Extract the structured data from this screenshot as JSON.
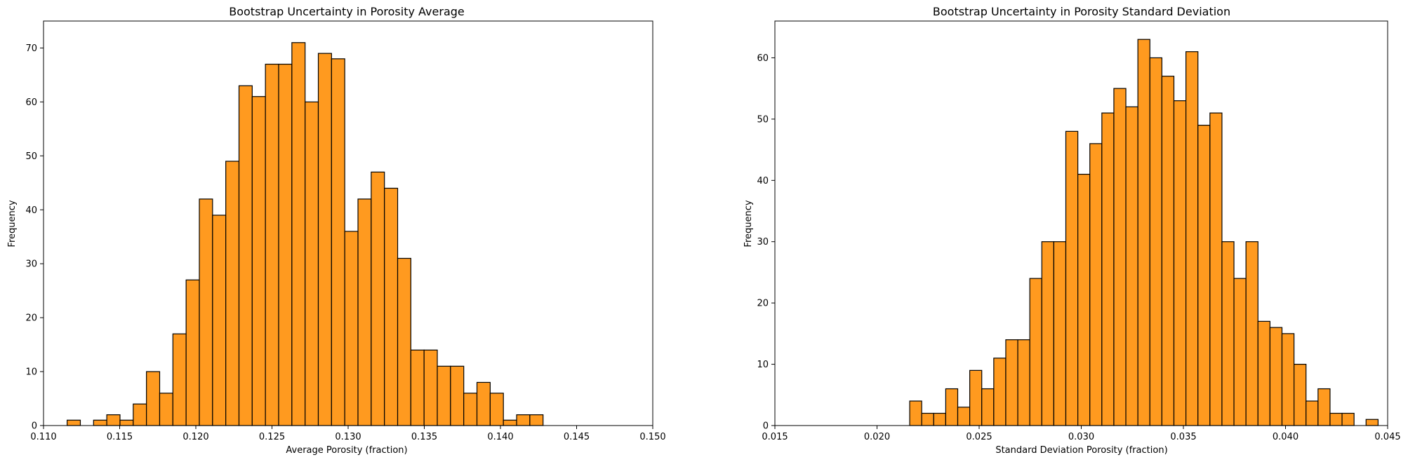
{
  "chart_data": [
    {
      "type": "bar",
      "title": "Bootstrap Uncertainty in Porosity Average",
      "xlabel": "Average Porosity (fraction)",
      "ylabel": "Frequency",
      "xlim": [
        0.11,
        0.15
      ],
      "ylim": [
        0,
        75
      ],
      "xticks": [
        "0.110",
        "0.115",
        "0.120",
        "0.125",
        "0.130",
        "0.135",
        "0.140",
        "0.145",
        "0.150"
      ],
      "yticks": [
        "0",
        "10",
        "20",
        "30",
        "40",
        "50",
        "60",
        "70"
      ],
      "bins": {
        "start": 0.11155,
        "width": 0.000868
      },
      "values": [
        1,
        0,
        1,
        2,
        1,
        4,
        10,
        6,
        17,
        27,
        42,
        39,
        49,
        63,
        61,
        67,
        67,
        71,
        60,
        69,
        68,
        36,
        42,
        47,
        44,
        31,
        14,
        14,
        11,
        11,
        6,
        8,
        6,
        1,
        2,
        2
      ],
      "bar_color": "#ff9a1f",
      "edge_color": "#000000",
      "grid": false
    },
    {
      "type": "bar",
      "title": "Bootstrap Uncertainty in Porosity Standard Deviation",
      "xlabel": "Standard Deviation Porosity (fraction)",
      "ylabel": "Frequency",
      "xlim": [
        0.015,
        0.045
      ],
      "ylim": [
        0,
        66
      ],
      "xticks": [
        "0.015",
        "0.020",
        "0.025",
        "0.030",
        "0.035",
        "0.040",
        "0.045"
      ],
      "yticks": [
        "0",
        "10",
        "20",
        "30",
        "40",
        "50",
        "60"
      ],
      "bins": {
        "start": 0.0216,
        "width": 0.000588
      },
      "values": [
        4,
        2,
        2,
        6,
        3,
        9,
        6,
        11,
        14,
        14,
        24,
        30,
        30,
        48,
        41,
        46,
        51,
        55,
        52,
        63,
        60,
        57,
        53,
        61,
        49,
        51,
        30,
        24,
        30,
        17,
        16,
        15,
        10,
        4,
        6,
        2,
        2,
        0,
        1
      ],
      "bar_color": "#ff9a1f",
      "edge_color": "#000000",
      "grid": false
    }
  ]
}
